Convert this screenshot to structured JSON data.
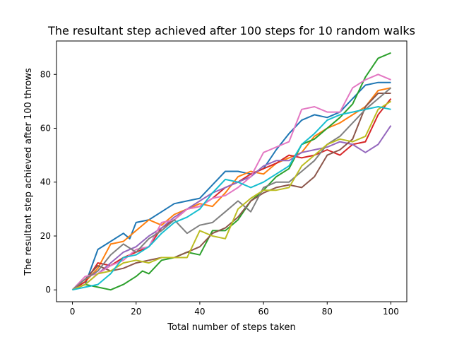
{
  "chart_data": {
    "type": "line",
    "title": "The resultant step achieved after 100 steps for 10 random walks",
    "xlabel": "Total number of steps taken",
    "ylabel": "The resultant step achieved after 100 throws",
    "xlim": [
      -5,
      105
    ],
    "ylim": [
      -4.4,
      92.4
    ],
    "xticks": [
      0,
      20,
      40,
      60,
      80,
      100
    ],
    "yticks": [
      0,
      20,
      40,
      60,
      80
    ],
    "grid": false,
    "legend": "none",
    "series": [
      {
        "color": "#1f77b4",
        "x": [
          0,
          4,
          8,
          12,
          16,
          18,
          20,
          24,
          28,
          32,
          36,
          40,
          44,
          48,
          52,
          56,
          60,
          64,
          68,
          72,
          76,
          80,
          84,
          88,
          92,
          96,
          100
        ],
        "y": [
          0,
          2,
          15,
          18,
          21,
          19,
          25,
          26,
          29,
          32,
          33,
          34,
          39,
          44,
          44,
          43,
          45,
          52,
          58,
          63,
          65,
          64,
          66,
          71,
          76,
          77,
          77
        ]
      },
      {
        "color": "#ff7f0e",
        "x": [
          0,
          4,
          8,
          12,
          16,
          20,
          24,
          28,
          32,
          36,
          40,
          44,
          48,
          52,
          56,
          60,
          64,
          68,
          72,
          76,
          80,
          84,
          88,
          92,
          96,
          100
        ],
        "y": [
          0,
          3,
          8,
          17,
          18,
          22,
          26,
          24,
          28,
          30,
          32,
          31,
          36,
          42,
          44,
          43,
          47,
          49,
          51,
          57,
          60,
          62,
          65,
          68,
          74,
          75
        ]
      },
      {
        "color": "#2ca02c",
        "x": [
          0,
          4,
          8,
          12,
          16,
          20,
          22,
          24,
          28,
          32,
          36,
          40,
          44,
          48,
          52,
          56,
          60,
          64,
          68,
          72,
          76,
          80,
          84,
          88,
          92,
          96,
          100
        ],
        "y": [
          0,
          2,
          1,
          0,
          2,
          5,
          7,
          6,
          11,
          12,
          14,
          13,
          22,
          22,
          26,
          33,
          37,
          42,
          45,
          54,
          56,
          60,
          64,
          69,
          79,
          86,
          88
        ]
      },
      {
        "color": "#d62728",
        "x": [
          0,
          4,
          8,
          12,
          16,
          20,
          24,
          28,
          32,
          36,
          40,
          44,
          48,
          52,
          56,
          60,
          64,
          68,
          72,
          76,
          80,
          84,
          88,
          92,
          96,
          100
        ],
        "y": [
          0,
          3,
          10,
          9,
          12,
          14,
          16,
          23,
          26,
          30,
          31,
          34,
          38,
          40,
          43,
          45,
          47,
          50,
          49,
          50,
          52,
          50,
          54,
          55,
          65,
          71
        ]
      },
      {
        "color": "#9467bd",
        "x": [
          0,
          4,
          8,
          12,
          16,
          20,
          24,
          28,
          32,
          36,
          40,
          44,
          48,
          52,
          56,
          60,
          64,
          68,
          72,
          76,
          80,
          84,
          88,
          92,
          96,
          100
        ],
        "y": [
          0,
          2,
          6,
          10,
          14,
          16,
          20,
          23,
          27,
          30,
          33,
          36,
          38,
          40,
          42,
          46,
          48,
          48,
          51,
          52,
          53,
          55,
          54,
          51,
          54,
          61
        ]
      },
      {
        "color": "#8c564b",
        "x": [
          0,
          4,
          8,
          12,
          16,
          20,
          24,
          28,
          32,
          36,
          40,
          44,
          48,
          52,
          56,
          60,
          64,
          68,
          72,
          76,
          80,
          84,
          88,
          92,
          96,
          100
        ],
        "y": [
          0,
          4,
          9,
          7,
          8,
          10,
          11,
          12,
          12,
          14,
          16,
          21,
          23,
          27,
          33,
          36,
          38,
          39,
          38,
          42,
          50,
          52,
          56,
          68,
          73,
          73
        ]
      },
      {
        "color": "#e377c2",
        "x": [
          0,
          4,
          8,
          12,
          16,
          20,
          24,
          28,
          32,
          36,
          40,
          44,
          48,
          52,
          56,
          60,
          64,
          68,
          72,
          76,
          80,
          84,
          88,
          92,
          96,
          100
        ],
        "y": [
          0,
          5,
          6,
          9,
          11,
          15,
          16,
          25,
          26,
          30,
          31,
          34,
          35,
          38,
          42,
          51,
          53,
          55,
          67,
          68,
          66,
          66,
          75,
          78,
          80,
          78
        ]
      },
      {
        "color": "#7f7f7f",
        "x": [
          0,
          4,
          8,
          12,
          16,
          20,
          24,
          28,
          32,
          36,
          40,
          44,
          48,
          52,
          56,
          60,
          64,
          68,
          72,
          76,
          80,
          84,
          88,
          92,
          96,
          100
        ],
        "y": [
          0,
          4,
          7,
          13,
          17,
          14,
          19,
          22,
          26,
          21,
          24,
          25,
          29,
          33,
          29,
          38,
          40,
          40,
          44,
          48,
          54,
          57,
          62,
          67,
          71,
          75
        ]
      },
      {
        "color": "#bcbd22",
        "x": [
          0,
          4,
          8,
          12,
          16,
          20,
          24,
          28,
          32,
          36,
          40,
          44,
          48,
          52,
          56,
          60,
          64,
          68,
          72,
          76,
          80,
          84,
          88,
          92,
          96,
          100
        ],
        "y": [
          0,
          2,
          6,
          7,
          10,
          11,
          10,
          12,
          12,
          12,
          22,
          20,
          19,
          30,
          34,
          37,
          37,
          38,
          46,
          50,
          54,
          56,
          55,
          57,
          67,
          70
        ]
      },
      {
        "color": "#17becf",
        "x": [
          0,
          4,
          8,
          12,
          16,
          20,
          24,
          28,
          32,
          36,
          40,
          44,
          48,
          52,
          56,
          60,
          64,
          68,
          72,
          76,
          80,
          84,
          88,
          92,
          96,
          100
        ],
        "y": [
          0,
          1,
          2,
          6,
          12,
          13,
          16,
          21,
          25,
          27,
          30,
          36,
          41,
          40,
          38,
          40,
          43,
          46,
          54,
          58,
          63,
          65,
          66,
          67,
          68,
          67
        ]
      }
    ]
  }
}
